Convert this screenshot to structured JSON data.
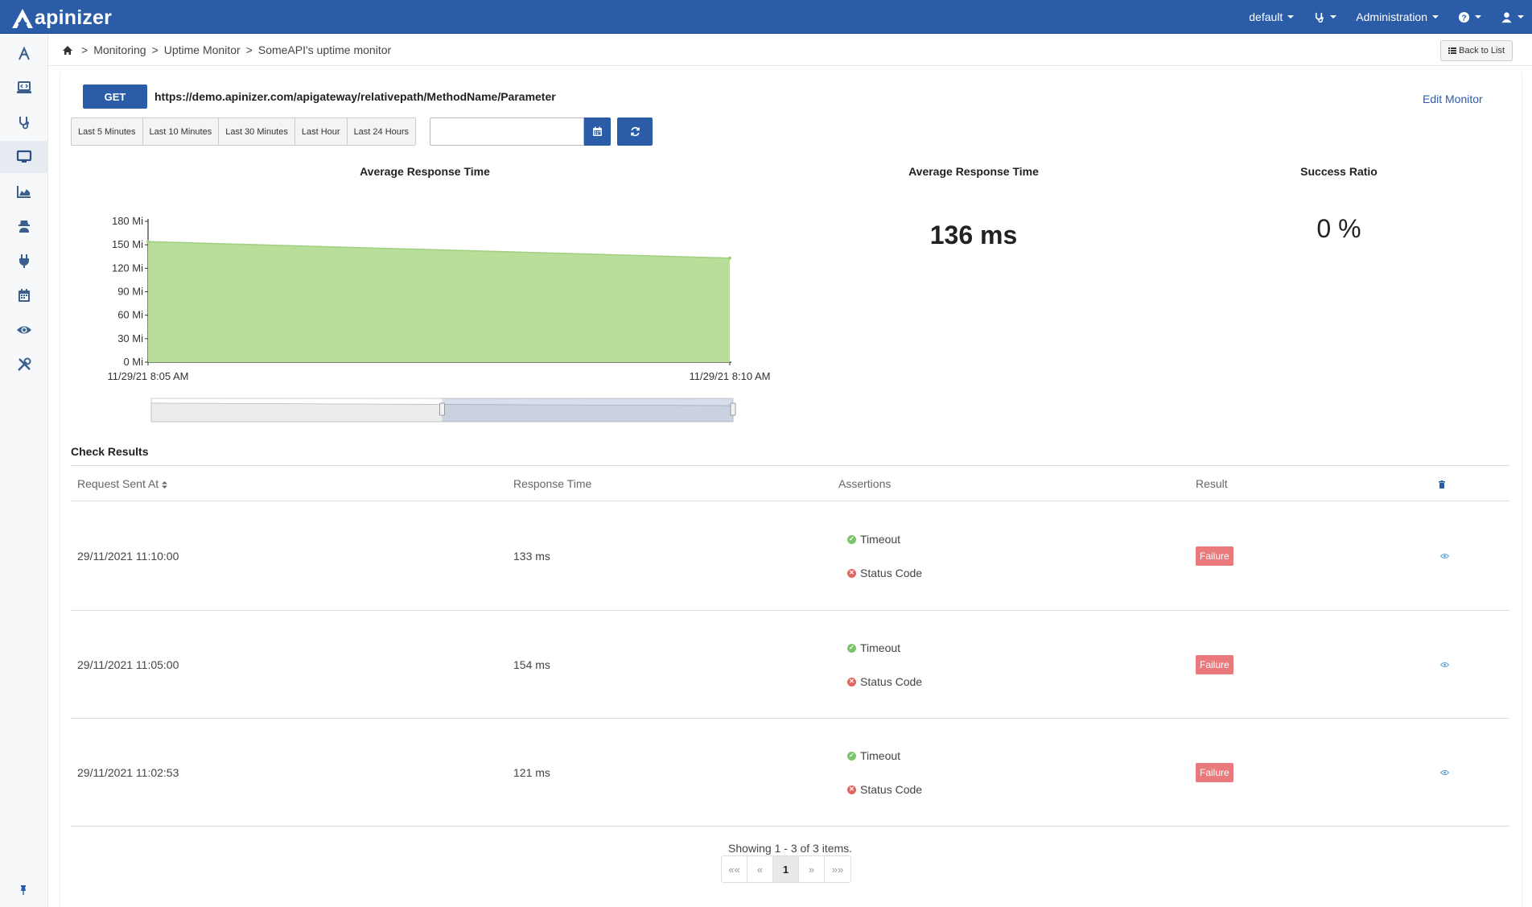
{
  "brand": {
    "name": "apinizer"
  },
  "topnav": {
    "project": "default",
    "admin": "Administration",
    "icons": [
      "stethoscope-icon",
      "question-icon",
      "user-icon"
    ]
  },
  "sidebar": {
    "items": [
      {
        "icon": "api-designer-icon"
      },
      {
        "icon": "development-icon"
      },
      {
        "icon": "stethoscope-icon"
      },
      {
        "icon": "monitor-icon",
        "active": true
      },
      {
        "icon": "analytics-chart-icon"
      },
      {
        "icon": "spy-icon"
      },
      {
        "icon": "plug-icon"
      },
      {
        "icon": "calendar-icon"
      },
      {
        "icon": "eye-icon"
      },
      {
        "icon": "tools-icon"
      }
    ],
    "pin_icon": "pin-icon"
  },
  "breadcrumb": {
    "items": [
      "Monitoring",
      "Uptime Monitor",
      "SomeAPI's uptime monitor"
    ],
    "back_label": "Back to List"
  },
  "monitor": {
    "method": "GET",
    "url": "https://demo.apinizer.com/apigateway/relativepath/MethodName/Parameter",
    "edit_label": "Edit Monitor"
  },
  "time_ranges": [
    "Last 5 Minutes",
    "Last 10 Minutes",
    "Last 30 Minutes",
    "Last Hour",
    "Last 24 Hours"
  ],
  "date_range_value": "",
  "panels": {
    "chart_title": "Average Response Time",
    "avg_title": "Average Response Time",
    "avg_value": "136 ms",
    "success_title": "Success Ratio",
    "success_value": "0 %"
  },
  "chart_data": {
    "type": "area",
    "title": "Average Response Time",
    "x": [
      "11/29/21 8:05 AM",
      "11/29/21 8:10 AM"
    ],
    "values": [
      154,
      133
    ],
    "ylim": [
      0,
      180
    ],
    "yticks": [
      "0 Mi",
      "30 Mi",
      "60 Mi",
      "90 Mi",
      "120 Mi",
      "150 Mi",
      "180 Mi"
    ],
    "ytick_values": [
      0,
      30,
      60,
      90,
      120,
      150,
      180
    ],
    "grid": false,
    "color": "#b8de9a",
    "line_color": "#9fd07f"
  },
  "checks": {
    "title": "Check Results",
    "columns": [
      "Request Sent At",
      "Response Time",
      "Assertions",
      "Result"
    ],
    "rows": [
      {
        "sent_at": "29/11/2021 11:10:00",
        "response_time": "133 ms",
        "assertions": [
          "Timeout",
          "Status Code"
        ],
        "result": "Failure"
      },
      {
        "sent_at": "29/11/2021 11:05:00",
        "response_time": "154 ms",
        "assertions": [
          "Timeout",
          "Status Code"
        ],
        "result": "Failure"
      },
      {
        "sent_at": "29/11/2021 11:02:53",
        "response_time": "121 ms",
        "assertions": [
          "Timeout",
          "Status Code"
        ],
        "result": "Failure"
      }
    ]
  },
  "pagination": {
    "summary": "Showing 1 - 3 of 3 items.",
    "first": "««",
    "prev": "«",
    "current": "1",
    "next": "»",
    "last": "»»"
  },
  "colors": {
    "primary": "#2a5ca8",
    "failure": "#e9797a",
    "success_dot": "#7cc46a",
    "error_dot": "#e0665f"
  }
}
